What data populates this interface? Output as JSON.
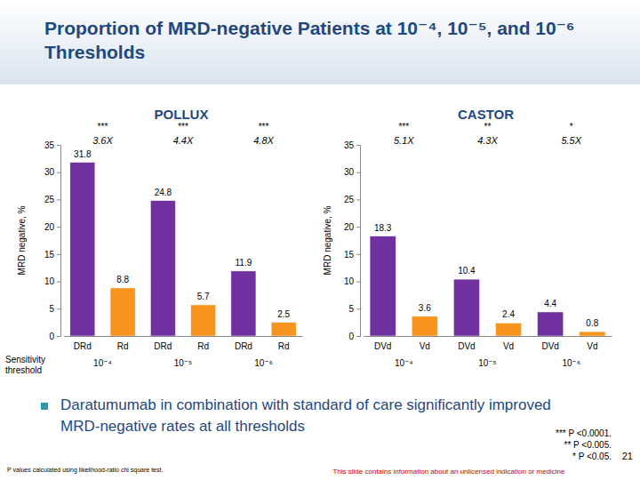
{
  "title": "Proportion of MRD-negative Patients at 10⁻⁴, 10⁻⁵, and 10⁻⁶ Thresholds",
  "bullet": "Daratumumab in combination with standard of care significantly improved MRD-negative rates at all thresholds",
  "footnotes": [
    "*** P <0.0001.",
    "** P <0.005.",
    "* P <0.05."
  ],
  "method_note": "P values calculated using likelihood-ratio chi square test.",
  "disclaimer": "This slide contains information about an unlicensed indication or medicine",
  "page_number": 21,
  "chart_data": [
    {
      "type": "bar",
      "title": "POLLUX",
      "categories": [
        "DRd",
        "Rd",
        "DRd",
        "Rd",
        "DRd",
        "Rd"
      ],
      "values": [
        31.8,
        8.8,
        24.8,
        5.7,
        11.9,
        2.5
      ],
      "colors": [
        "#7030a0",
        "#f7941d",
        "#7030a0",
        "#f7941d",
        "#7030a0",
        "#f7941d"
      ],
      "groups": [
        "10⁻⁴",
        "10⁻⁵",
        "10⁻⁶"
      ],
      "significance": [
        "***",
        "***",
        "***"
      ],
      "fold_changes": [
        "3.6X",
        "4.4X",
        "4.8X"
      ],
      "y_label": "MRD negative, %",
      "x_label": "Sensitivity threshold",
      "ylim": [
        0,
        35
      ],
      "yticks": [
        0,
        5,
        10,
        15,
        20,
        25,
        30,
        35
      ],
      "data_labels": true
    },
    {
      "type": "bar",
      "title": "CASTOR",
      "categories": [
        "DVd",
        "Vd",
        "DVd",
        "Vd",
        "DVd",
        "Vd"
      ],
      "values": [
        18.3,
        3.6,
        10.4,
        2.4,
        4.4,
        0.8
      ],
      "colors": [
        "#7030a0",
        "#f7941d",
        "#7030a0",
        "#f7941d",
        "#7030a0",
        "#f7941d"
      ],
      "groups": [
        "10⁻⁴",
        "10⁻⁵",
        "10⁻⁶"
      ],
      "significance": [
        "***",
        "**",
        "*"
      ],
      "fold_changes": [
        "5.1X",
        "4.3X",
        "5.5X"
      ],
      "y_label": "MRD negative, %",
      "ylim": [
        0,
        35
      ],
      "yticks": [
        0,
        5,
        10,
        15,
        20,
        25,
        30,
        35
      ],
      "data_labels": true
    }
  ]
}
